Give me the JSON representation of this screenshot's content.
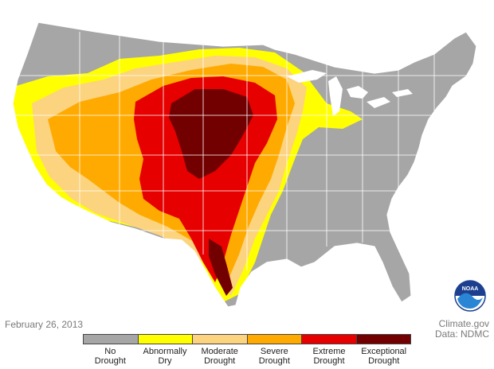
{
  "date": "February 26, 2013",
  "credits": {
    "site": "Climate.gov",
    "data_source": "Data: NDMC"
  },
  "logo_text": "NOAA",
  "legend": [
    {
      "line1": "No",
      "line2": "Drought",
      "color": "#a6a6a6"
    },
    {
      "line1": "Abnormally",
      "line2": "Dry",
      "color": "#ffff00"
    },
    {
      "line1": "Moderate",
      "line2": "Drought",
      "color": "#fcd37f"
    },
    {
      "line1": "Severe",
      "line2": "Drought",
      "color": "#ffaa00"
    },
    {
      "line1": "Extreme",
      "line2": "Drought",
      "color": "#e60000"
    },
    {
      "line1": "Exceptional",
      "line2": "Drought",
      "color": "#730000"
    }
  ],
  "colors": {
    "no_drought": "#a6a6a6",
    "abnormally_dry": "#ffff00",
    "moderate": "#fcd37f",
    "severe": "#ffaa00",
    "extreme": "#e60000",
    "exceptional": "#730000",
    "state_border": "#ffffff"
  }
}
